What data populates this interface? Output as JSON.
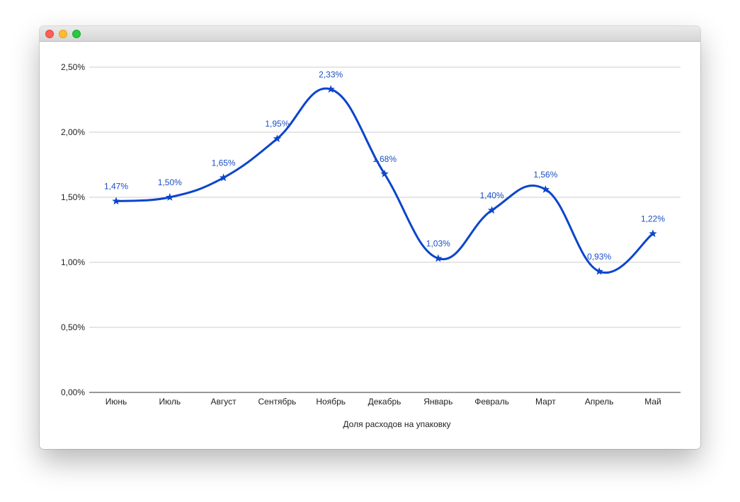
{
  "window": {
    "title": ""
  },
  "chart_data": {
    "type": "line",
    "title": "",
    "xlabel": "Доля расходов на упаковку",
    "ylabel": "",
    "categories": [
      "Июнь",
      "Июль",
      "Август",
      "Сентябрь",
      "Ноябрь",
      "Декабрь",
      "Январь",
      "Февраль",
      "Март",
      "Апрель",
      "Май"
    ],
    "series": [
      {
        "values": [
          1.47,
          1.5,
          1.65,
          1.95,
          2.33,
          1.68,
          1.03,
          1.4,
          1.56,
          0.93,
          1.22
        ],
        "data_labels": [
          "1,47%",
          "1,50%",
          "1,65%",
          "1,95%",
          "2,33%",
          "1,68%",
          "1,03%",
          "1,40%",
          "1,56%",
          "0,93%",
          "1,22%"
        ],
        "color": "#0b45cc",
        "marker": "star",
        "smooth": true
      }
    ],
    "ylim": [
      0,
      2.5
    ],
    "yticks": [
      0,
      0.5,
      1.0,
      1.5,
      2.0,
      2.5
    ],
    "ytick_labels": [
      "0,00%",
      "0,50%",
      "1,00%",
      "1,50%",
      "2,00%",
      "2,50%"
    ],
    "grid": true,
    "legend": "none"
  }
}
